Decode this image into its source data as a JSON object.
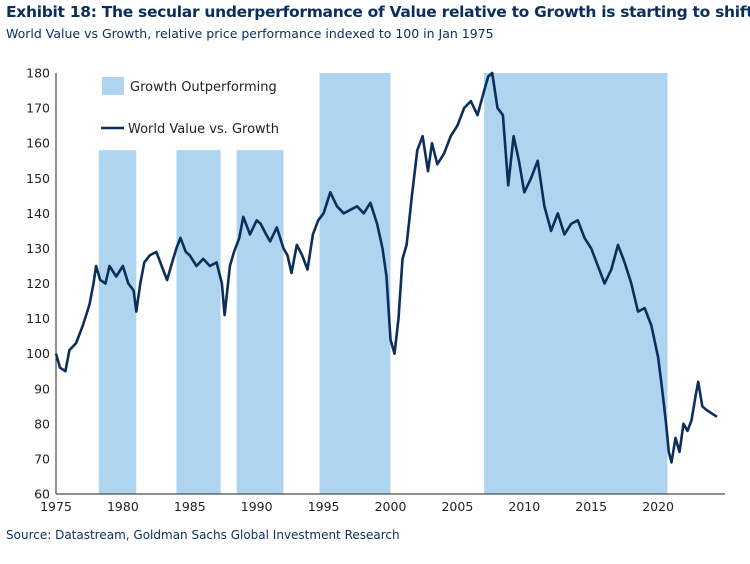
{
  "header": {
    "title": "Exhibit 18: The secular underperformance of Value relative to Growth is starting to shift",
    "subtitle": "World Value vs Growth, relative price performance indexed to 100 in Jan 1975"
  },
  "footer": {
    "source": "Source: Datastream, Goldman Sachs Global Investment Research"
  },
  "colors": {
    "line": "#0b2e5a",
    "shade": "#aed4f0",
    "text": "#0b2e5a"
  },
  "chart_data": {
    "type": "line",
    "xlabel": "",
    "ylabel": "",
    "xlim": [
      1975,
      2025
    ],
    "ylim": [
      60,
      180
    ],
    "x_ticks": [
      1975,
      1980,
      1985,
      1990,
      1995,
      2000,
      2005,
      2010,
      2015,
      2020
    ],
    "y_ticks": [
      60,
      70,
      80,
      90,
      100,
      110,
      120,
      130,
      140,
      150,
      160,
      170,
      180
    ],
    "grid": false,
    "legend_position": "top-left",
    "shaded_periods": {
      "name": "Growth Outperforming",
      "periods": [
        {
          "start": 1978.2,
          "end": 1981.0,
          "top": 158
        },
        {
          "start": 1984.0,
          "end": 1987.3,
          "top": 158
        },
        {
          "start": 1988.5,
          "end": 1992.0,
          "top": 158
        },
        {
          "start": 1994.7,
          "end": 2000.0,
          "top": 180
        },
        {
          "start": 2007.0,
          "end": 2020.7,
          "top": 180
        }
      ]
    },
    "series": [
      {
        "name": "World Value vs. Growth",
        "x": [
          1975.0,
          1975.3,
          1975.7,
          1976.0,
          1976.5,
          1977.0,
          1977.5,
          1977.8,
          1978.0,
          1978.3,
          1978.7,
          1979.0,
          1979.5,
          1980.0,
          1980.4,
          1980.8,
          1981.0,
          1981.3,
          1981.6,
          1982.0,
          1982.5,
          1983.0,
          1983.3,
          1983.6,
          1984.0,
          1984.3,
          1984.7,
          1985.0,
          1985.5,
          1986.0,
          1986.5,
          1987.0,
          1987.4,
          1987.6,
          1988.0,
          1988.3,
          1988.7,
          1989.0,
          1989.5,
          1990.0,
          1990.3,
          1990.7,
          1991.0,
          1991.5,
          1992.0,
          1992.3,
          1992.6,
          1993.0,
          1993.4,
          1993.8,
          1994.2,
          1994.6,
          1995.0,
          1995.5,
          1996.0,
          1996.5,
          1997.0,
          1997.5,
          1998.0,
          1998.5,
          1999.0,
          1999.4,
          1999.7,
          2000.0,
          2000.3,
          2000.6,
          2000.9,
          2001.2,
          2001.6,
          2002.0,
          2002.4,
          2002.8,
          2003.1,
          2003.5,
          2004.0,
          2004.5,
          2005.0,
          2005.5,
          2006.0,
          2006.5,
          2007.0,
          2007.3,
          2007.6,
          2008.0,
          2008.4,
          2008.8,
          2009.2,
          2009.6,
          2010.0,
          2010.5,
          2011.0,
          2011.5,
          2012.0,
          2012.5,
          2013.0,
          2013.5,
          2014.0,
          2014.5,
          2015.0,
          2015.5,
          2016.0,
          2016.5,
          2017.0,
          2017.5,
          2018.0,
          2018.5,
          2019.0,
          2019.5,
          2020.0,
          2020.3,
          2020.6,
          2020.8,
          2021.0,
          2021.3,
          2021.6,
          2021.9,
          2022.2,
          2022.5,
          2022.8,
          2023.0,
          2023.3,
          2023.6,
          2024.0,
          2024.4
        ],
        "values": [
          100,
          96,
          95,
          101,
          103,
          108,
          114,
          120,
          125,
          121,
          120,
          125,
          122,
          125,
          120,
          118,
          112,
          120,
          126,
          128,
          129,
          124,
          121,
          125,
          130,
          133,
          129,
          128,
          125,
          127,
          125,
          126,
          120,
          111,
          125,
          129,
          133,
          139,
          134,
          138,
          137,
          134,
          132,
          136,
          130,
          128,
          123,
          131,
          128,
          124,
          134,
          138,
          140,
          146,
          142,
          140,
          141,
          142,
          140,
          143,
          137,
          130,
          122,
          104,
          100,
          110,
          127,
          131,
          145,
          158,
          162,
          152,
          160,
          154,
          157,
          162,
          165,
          170,
          172,
          168,
          175,
          179,
          180,
          170,
          168,
          148,
          162,
          155,
          146,
          150,
          155,
          142,
          135,
          140,
          134,
          137,
          138,
          133,
          130,
          125,
          120,
          124,
          131,
          126,
          120,
          112,
          113,
          108,
          99,
          90,
          80,
          72,
          69,
          76,
          72,
          80,
          78,
          81,
          88,
          92,
          85,
          84,
          83,
          82
        ]
      }
    ]
  }
}
